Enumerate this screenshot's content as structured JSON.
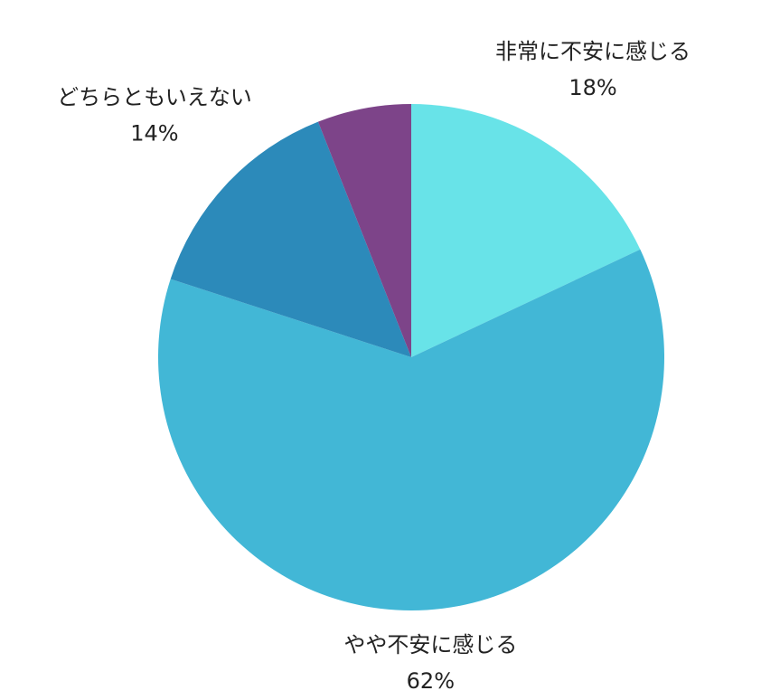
{
  "chart_data": {
    "type": "pie",
    "categories": [
      "非常に不安に感じる",
      "やや不安に感じる",
      "どちらともいえない",
      null
    ],
    "values": [
      18,
      62,
      14,
      6
    ],
    "value_labels": [
      "18%",
      "62%",
      "14%",
      null
    ],
    "colors": [
      "#68e3e8",
      "#42b7d6",
      "#2c8aba",
      "#7d4489"
    ]
  }
}
